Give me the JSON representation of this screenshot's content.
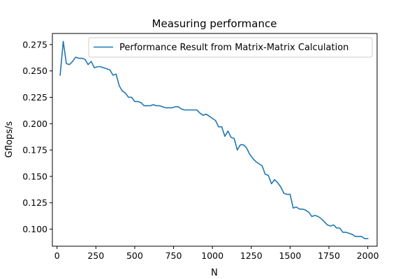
{
  "chart_data": {
    "type": "line",
    "title": "Measuring performance",
    "xlabel": "N",
    "ylabel": "Gflops/s",
    "xlim": [
      -30,
      2060
    ],
    "ylim": [
      0.0838,
      0.2855
    ],
    "xticks": [
      0,
      250,
      500,
      750,
      1000,
      1250,
      1500,
      1750,
      2000
    ],
    "xtick_labels": [
      "0",
      "250",
      "500",
      "750",
      "1000",
      "1250",
      "1500",
      "1750",
      "2000"
    ],
    "yticks": [
      0.1,
      0.125,
      0.15,
      0.175,
      0.2,
      0.225,
      0.25,
      0.275
    ],
    "ytick_labels": [
      "0.100",
      "0.125",
      "0.150",
      "0.175",
      "0.200",
      "0.225",
      "0.250",
      "0.275"
    ],
    "grid": false,
    "legend_position": "top-right",
    "series": [
      {
        "name": "Performance Result from Matrix-Matrix Calculation",
        "color": "#1f77b4",
        "x": [
          20,
          40,
          60,
          80,
          100,
          120,
          140,
          160,
          180,
          200,
          220,
          240,
          260,
          280,
          300,
          320,
          340,
          360,
          380,
          400,
          420,
          440,
          460,
          480,
          500,
          520,
          540,
          560,
          580,
          600,
          620,
          640,
          660,
          680,
          700,
          720,
          740,
          760,
          780,
          800,
          820,
          840,
          860,
          880,
          900,
          920,
          940,
          960,
          980,
          1000,
          1020,
          1040,
          1060,
          1080,
          1100,
          1120,
          1140,
          1160,
          1180,
          1200,
          1220,
          1240,
          1260,
          1280,
          1300,
          1320,
          1340,
          1360,
          1380,
          1400,
          1420,
          1440,
          1460,
          1480,
          1500,
          1520,
          1540,
          1560,
          1580,
          1600,
          1620,
          1640,
          1660,
          1680,
          1700,
          1720,
          1740,
          1760,
          1780,
          1800,
          1820,
          1840,
          1860,
          1880,
          1900,
          1920,
          1940,
          1960,
          1980,
          2000
        ],
        "y": [
          0.246,
          0.278,
          0.257,
          0.256,
          0.259,
          0.263,
          0.262,
          0.262,
          0.261,
          0.256,
          0.259,
          0.253,
          0.254,
          0.254,
          0.253,
          0.252,
          0.251,
          0.246,
          0.247,
          0.236,
          0.231,
          0.229,
          0.225,
          0.225,
          0.221,
          0.221,
          0.22,
          0.217,
          0.217,
          0.217,
          0.218,
          0.217,
          0.217,
          0.216,
          0.215,
          0.215,
          0.215,
          0.216,
          0.216,
          0.214,
          0.213,
          0.213,
          0.213,
          0.213,
          0.213,
          0.21,
          0.208,
          0.209,
          0.207,
          0.205,
          0.203,
          0.197,
          0.197,
          0.188,
          0.193,
          0.187,
          0.186,
          0.175,
          0.18,
          0.18,
          0.177,
          0.171,
          0.167,
          0.164,
          0.162,
          0.16,
          0.152,
          0.151,
          0.143,
          0.147,
          0.144,
          0.14,
          0.134,
          0.133,
          0.133,
          0.12,
          0.121,
          0.119,
          0.119,
          0.118,
          0.116,
          0.112,
          0.113,
          0.112,
          0.11,
          0.107,
          0.104,
          0.103,
          0.104,
          0.101,
          0.101,
          0.097,
          0.097,
          0.096,
          0.095,
          0.093,
          0.093,
          0.093,
          0.091,
          0.091
        ]
      }
    ]
  }
}
